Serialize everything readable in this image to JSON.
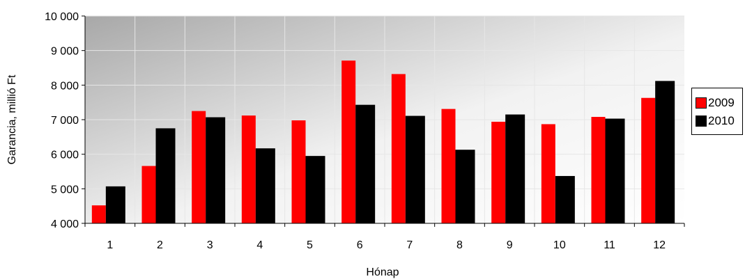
{
  "chart_data": {
    "type": "bar",
    "categories": [
      "1",
      "2",
      "3",
      "4",
      "5",
      "6",
      "7",
      "8",
      "9",
      "10",
      "11",
      "12"
    ],
    "series": [
      {
        "name": "2009",
        "color": "#ff0000",
        "values": [
          4520,
          5660,
          7250,
          7120,
          6980,
          8710,
          8320,
          7310,
          6940,
          6870,
          7080,
          7630
        ]
      },
      {
        "name": "2010",
        "color": "#000000",
        "values": [
          5070,
          6750,
          7070,
          6170,
          5950,
          7430,
          7110,
          6130,
          7150,
          5370,
          7030,
          8120
        ]
      }
    ],
    "xlabel": "Hónap",
    "ylabel": "Garancia, millió Ft",
    "ylim": [
      4000,
      10000
    ],
    "yticks": [
      4000,
      5000,
      6000,
      7000,
      8000,
      9000,
      10000
    ],
    "ytick_labels": [
      "4 000",
      "5 000",
      "6 000",
      "7 000",
      "8 000",
      "9 000",
      "10 000"
    ],
    "grid": true,
    "legend_position": "right"
  }
}
